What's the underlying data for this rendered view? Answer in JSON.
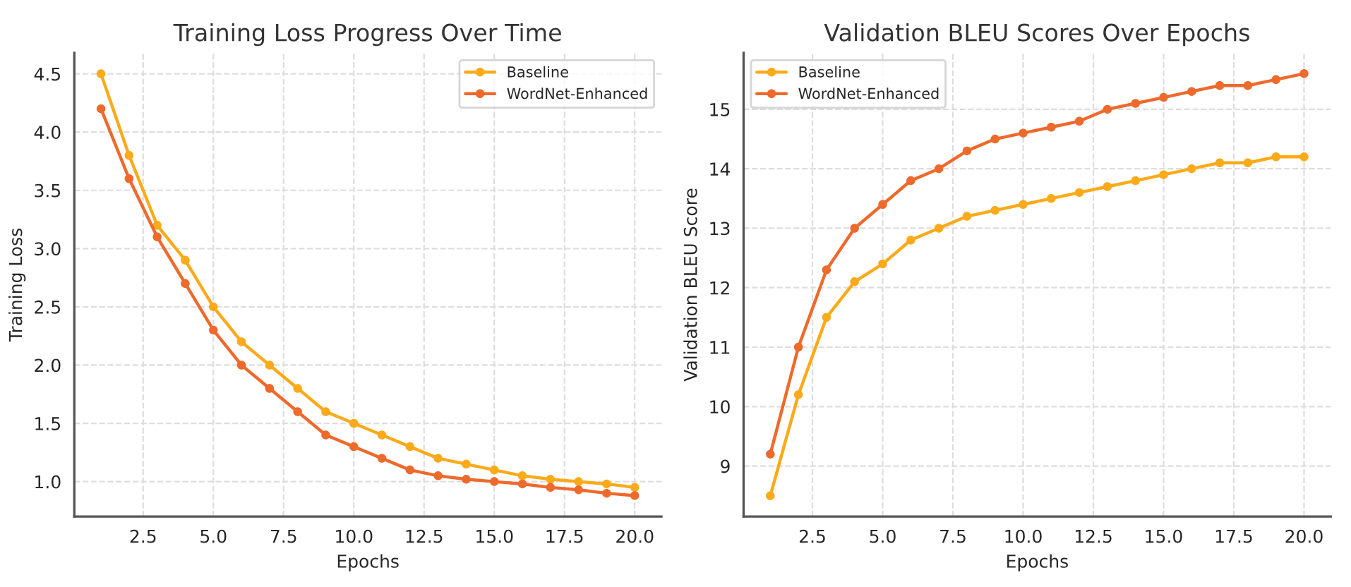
{
  "chart_data": [
    {
      "type": "line",
      "title": "Training Loss Progress Over Time",
      "xlabel": "Epochs",
      "ylabel": "Training Loss",
      "x": [
        1,
        2,
        3,
        4,
        5,
        6,
        7,
        8,
        9,
        10,
        11,
        12,
        13,
        14,
        15,
        16,
        17,
        18,
        19,
        20
      ],
      "series": [
        {
          "name": "Baseline",
          "color": "#fbaa1a",
          "values": [
            4.5,
            3.8,
            3.2,
            2.9,
            2.5,
            2.2,
            2.0,
            1.8,
            1.6,
            1.5,
            1.4,
            1.3,
            1.2,
            1.15,
            1.1,
            1.05,
            1.02,
            1.0,
            0.98,
            0.95
          ]
        },
        {
          "name": "WordNet-Enhanced",
          "color": "#ee6a2c",
          "values": [
            4.2,
            3.6,
            3.1,
            2.7,
            2.3,
            2.0,
            1.8,
            1.6,
            1.4,
            1.3,
            1.2,
            1.1,
            1.05,
            1.02,
            1.0,
            0.98,
            0.95,
            0.93,
            0.9,
            0.88
          ]
        }
      ],
      "xlim": [
        0.05,
        20.95
      ],
      "ylim": [
        0.7,
        4.68
      ],
      "xticks": [
        {
          "value": 2.5,
          "label": "2.5"
        },
        {
          "value": 5,
          "label": "5.0"
        },
        {
          "value": 7.5,
          "label": "7.5"
        },
        {
          "value": 10,
          "label": "10.0"
        },
        {
          "value": 12.5,
          "label": "12.5"
        },
        {
          "value": 15,
          "label": "15.0"
        },
        {
          "value": 17.5,
          "label": "17.5"
        },
        {
          "value": 20,
          "label": "20.0"
        }
      ],
      "yticks": [
        {
          "value": 1,
          "label": "1.0"
        },
        1.5,
        {
          "value": 2,
          "label": "2.0"
        },
        2.5,
        {
          "value": 3,
          "label": "3.0"
        },
        3.5,
        {
          "value": 4,
          "label": "4.0"
        },
        4.5
      ],
      "grid": true,
      "legend": "top right",
      "marker": "circle",
      "line_style": "solid"
    },
    {
      "type": "line",
      "title": "Validation BLEU Scores Over Epochs",
      "xlabel": "Epochs",
      "ylabel": "Validation BLEU Score",
      "x": [
        1,
        2,
        3,
        4,
        5,
        6,
        7,
        8,
        9,
        10,
        11,
        12,
        13,
        14,
        15,
        16,
        17,
        18,
        19,
        20
      ],
      "series": [
        {
          "name": "Baseline",
          "color": "#fbaa1a",
          "values": [
            8.5,
            10.2,
            11.5,
            12.1,
            12.4,
            12.8,
            13.0,
            13.2,
            13.3,
            13.4,
            13.5,
            13.6,
            13.7,
            13.8,
            13.9,
            14.0,
            14.1,
            14.1,
            14.2,
            14.2
          ]
        },
        {
          "name": "WordNet-Enhanced",
          "color": "#ee6a2c",
          "values": [
            9.2,
            11.0,
            12.3,
            13.0,
            13.4,
            13.8,
            14.0,
            14.3,
            14.5,
            14.6,
            14.7,
            14.8,
            15.0,
            15.1,
            15.2,
            15.3,
            15.4,
            15.4,
            15.5,
            15.6
          ]
        }
      ],
      "xlim": [
        0.05,
        20.95
      ],
      "ylim": [
        8.15,
        15.95
      ],
      "xticks": [
        {
          "value": 2.5,
          "label": "2.5"
        },
        {
          "value": 5,
          "label": "5.0"
        },
        {
          "value": 7.5,
          "label": "7.5"
        },
        {
          "value": 10,
          "label": "10.0"
        },
        {
          "value": 12.5,
          "label": "12.5"
        },
        {
          "value": 15,
          "label": "15.0"
        },
        {
          "value": 17.5,
          "label": "17.5"
        },
        {
          "value": 20,
          "label": "20.0"
        }
      ],
      "yticks": [
        9,
        10,
        11,
        12,
        13,
        14,
        15
      ],
      "grid": true,
      "legend": "top left",
      "marker": "circle",
      "line_style": "solid"
    }
  ]
}
